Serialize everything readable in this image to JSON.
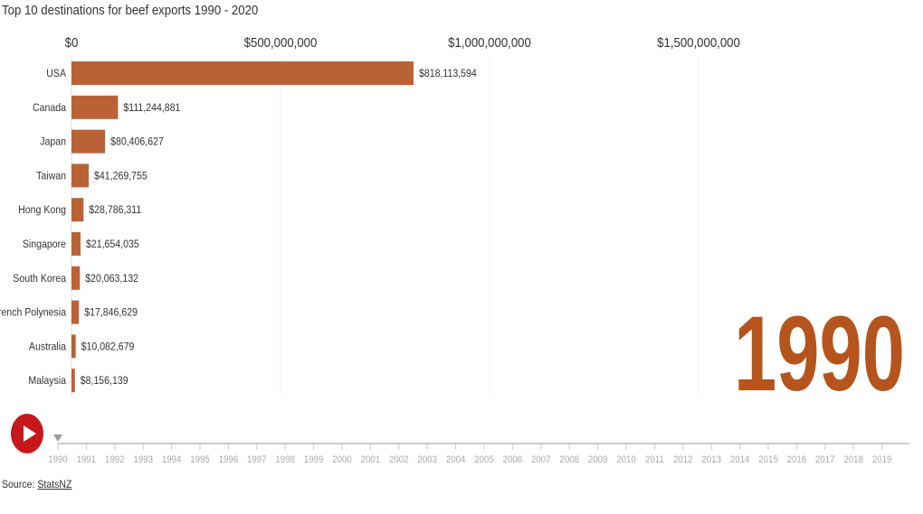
{
  "title": "Top 10 destinations for beef exports 1990 - 2020",
  "source": {
    "label": "Source:",
    "link": "StatsNZ"
  },
  "current_year": "1990",
  "colors": {
    "bar": "#ba6236",
    "year": "#b5541c",
    "play": "#c8171c"
  },
  "chart_data": {
    "type": "bar",
    "orientation": "horizontal",
    "title": "Top 10 destinations for beef exports 1990 - 2020",
    "categories": [
      "USA",
      "Canada",
      "Japan",
      "Taiwan",
      "Hong Kong",
      "Singapore",
      "South Korea",
      "French Polynesia",
      "Australia",
      "Malaysia"
    ],
    "values": [
      818113594,
      111244881,
      80406627,
      41269755,
      28786311,
      21654035,
      20063132,
      17846629,
      10082679,
      8156139
    ],
    "value_labels": [
      "$818,113,594",
      "$111,244,881",
      "$80,406,627",
      "$41,269,755",
      "$28,786,311",
      "$21,654,035",
      "$20,063,132",
      "$17,846,629",
      "$10,082,679",
      "$8,156,139"
    ],
    "xticks": [
      0,
      500000000,
      1000000000,
      1500000000
    ],
    "xtick_labels": [
      "$0",
      "$500,000,000",
      "$1,000,000,000",
      "$1,500,000,000"
    ],
    "xlim": [
      0,
      2000000000
    ],
    "grid": true
  },
  "timeline": {
    "years": [
      "1990",
      "1991",
      "1992",
      "1993",
      "1994",
      "1995",
      "1996",
      "1997",
      "1998",
      "1999",
      "2000",
      "2001",
      "2002",
      "2003",
      "2004",
      "2005",
      "2006",
      "2007",
      "2008",
      "2009",
      "2010",
      "2011",
      "2012",
      "2013",
      "2014",
      "2015",
      "2016",
      "2017",
      "2018",
      "2019"
    ],
    "selected": "1990"
  }
}
